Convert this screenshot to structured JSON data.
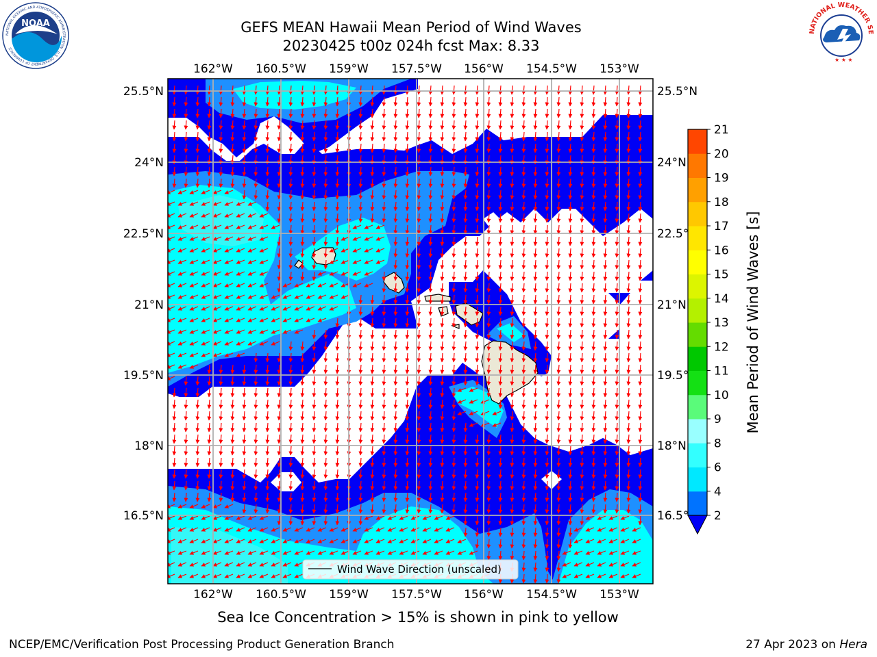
{
  "title": {
    "line1": "GEFS MEAN Hawaii Mean Period of Wind Waves",
    "line2": "20230425 t00z 024h fcst   Max: 8.33"
  },
  "logos": {
    "noaa_text": "NOAA",
    "noaa_ring_text": "NATIONAL OCEANIC AND ATMOSPHERIC ADMINISTRATION · U.S. DEPARTMENT OF COMMERCE",
    "nws_ring_text": "NATIONAL WEATHER SERVICE"
  },
  "map": {
    "x_ticks": [
      "162°W",
      "160.5°W",
      "159°W",
      "157.5°W",
      "156°W",
      "154.5°W",
      "153°W"
    ],
    "y_ticks": [
      "25.5°N",
      "24°N",
      "22.5°N",
      "21°N",
      "19.5°N",
      "18°N",
      "16.5°N"
    ],
    "legend_label": "Wind Wave Direction (unscaled)",
    "colors": {
      "ocean_blue": "#0000f5",
      "mid_blue": "#1e90ff",
      "cyan": "#00ffff",
      "light_cyan": "#35f7f7",
      "land": "#ebe8d6",
      "arrow": "#ff0000",
      "grid": "#b0b0b0"
    }
  },
  "colorbar": {
    "label": "Mean Period of Wind Waves [s]",
    "ticks": [
      "2",
      "4",
      "6",
      "8",
      "9",
      "10",
      "11",
      "12",
      "13",
      "14",
      "15",
      "16",
      "17",
      "18",
      "19",
      "20",
      "21"
    ],
    "colors": [
      "#0073ff",
      "#00e8ff",
      "#33ffff",
      "#99ffff",
      "#5afb7a",
      "#14e014",
      "#00c800",
      "#64dc00",
      "#b4f000",
      "#dcf500",
      "#ffff00",
      "#ffe600",
      "#ffc800",
      "#ffa000",
      "#ff7800",
      "#ff4600",
      "#ff0000"
    ],
    "under_color": "#0000f5"
  },
  "ice_note": "Sea Ice Concentration > 15% is shown in pink to yellow",
  "footer": {
    "left": "NCEP/EMC/Verification Post Processing Product Generation Branch",
    "right_date": "27 Apr 2023 on",
    "right_machine": "Hera"
  }
}
